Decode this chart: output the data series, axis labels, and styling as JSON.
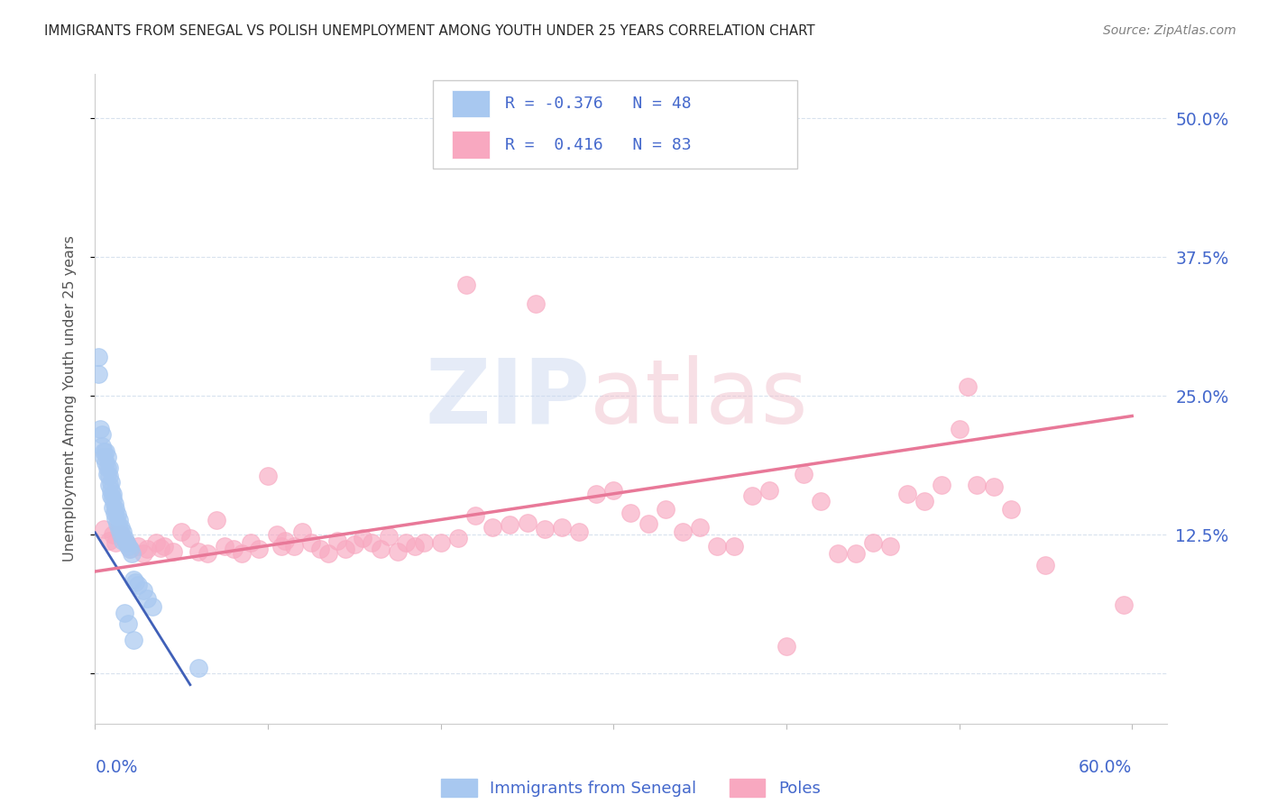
{
  "title": "IMMIGRANTS FROM SENEGAL VS POLISH UNEMPLOYMENT AMONG YOUTH UNDER 25 YEARS CORRELATION CHART",
  "source": "Source: ZipAtlas.com",
  "ylabel": "Unemployment Among Youth under 25 years",
  "background_color": "#ffffff",
  "blue_scatter_x": [
    0.002,
    0.002,
    0.003,
    0.004,
    0.004,
    0.005,
    0.005,
    0.006,
    0.006,
    0.007,
    0.007,
    0.007,
    0.008,
    0.008,
    0.008,
    0.009,
    0.009,
    0.009,
    0.01,
    0.01,
    0.01,
    0.011,
    0.011,
    0.012,
    0.012,
    0.013,
    0.013,
    0.014,
    0.014,
    0.015,
    0.015,
    0.016,
    0.016,
    0.017,
    0.018,
    0.019,
    0.02,
    0.021,
    0.022,
    0.023,
    0.025,
    0.028,
    0.03,
    0.033,
    0.017,
    0.019,
    0.022,
    0.06
  ],
  "blue_scatter_y": [
    0.285,
    0.27,
    0.22,
    0.215,
    0.205,
    0.2,
    0.195,
    0.2,
    0.19,
    0.195,
    0.185,
    0.18,
    0.185,
    0.178,
    0.17,
    0.172,
    0.165,
    0.16,
    0.162,
    0.158,
    0.15,
    0.153,
    0.145,
    0.148,
    0.14,
    0.143,
    0.135,
    0.138,
    0.13,
    0.132,
    0.125,
    0.128,
    0.12,
    0.122,
    0.118,
    0.115,
    0.112,
    0.108,
    0.085,
    0.082,
    0.08,
    0.075,
    0.068,
    0.06,
    0.055,
    0.045,
    0.03,
    0.005
  ],
  "pink_scatter_x": [
    0.005,
    0.008,
    0.01,
    0.012,
    0.015,
    0.018,
    0.02,
    0.025,
    0.028,
    0.03,
    0.035,
    0.038,
    0.04,
    0.045,
    0.05,
    0.055,
    0.06,
    0.065,
    0.07,
    0.075,
    0.08,
    0.085,
    0.09,
    0.095,
    0.1,
    0.105,
    0.108,
    0.11,
    0.115,
    0.12,
    0.125,
    0.13,
    0.135,
    0.14,
    0.145,
    0.15,
    0.155,
    0.16,
    0.165,
    0.17,
    0.175,
    0.18,
    0.185,
    0.19,
    0.2,
    0.21,
    0.215,
    0.22,
    0.23,
    0.24,
    0.25,
    0.255,
    0.26,
    0.27,
    0.28,
    0.29,
    0.3,
    0.31,
    0.32,
    0.33,
    0.34,
    0.35,
    0.36,
    0.37,
    0.38,
    0.39,
    0.4,
    0.41,
    0.42,
    0.43,
    0.44,
    0.45,
    0.46,
    0.47,
    0.48,
    0.49,
    0.5,
    0.505,
    0.51,
    0.52,
    0.53,
    0.55,
    0.595
  ],
  "pink_scatter_y": [
    0.13,
    0.12,
    0.125,
    0.118,
    0.125,
    0.118,
    0.112,
    0.115,
    0.108,
    0.112,
    0.118,
    0.113,
    0.115,
    0.11,
    0.128,
    0.122,
    0.11,
    0.108,
    0.138,
    0.115,
    0.112,
    0.108,
    0.118,
    0.112,
    0.178,
    0.125,
    0.115,
    0.12,
    0.115,
    0.128,
    0.118,
    0.112,
    0.108,
    0.12,
    0.112,
    0.116,
    0.122,
    0.118,
    0.112,
    0.124,
    0.11,
    0.118,
    0.115,
    0.118,
    0.118,
    0.122,
    0.35,
    0.142,
    0.132,
    0.134,
    0.136,
    0.333,
    0.13,
    0.132,
    0.128,
    0.162,
    0.165,
    0.145,
    0.135,
    0.148,
    0.128,
    0.132,
    0.115,
    0.115,
    0.16,
    0.165,
    0.025,
    0.18,
    0.155,
    0.108,
    0.108,
    0.118,
    0.115,
    0.162,
    0.155,
    0.17,
    0.22,
    0.258,
    0.17,
    0.168,
    0.148,
    0.098,
    0.062
  ],
  "blue_line_x": [
    0.0,
    0.055
  ],
  "blue_line_y": [
    0.127,
    -0.01
  ],
  "pink_line_x": [
    0.0,
    0.6
  ],
  "pink_line_y": [
    0.092,
    0.232
  ],
  "blue_color": "#a8c8f0",
  "pink_color": "#f8a8c0",
  "blue_line_color": "#4060b8",
  "pink_line_color": "#e87898",
  "grid_color": "#d8e2ee",
  "axis_color": "#4468cc",
  "title_color": "#282828",
  "ytick_vals": [
    0.0,
    0.125,
    0.25,
    0.375,
    0.5
  ],
  "ytick_labels": [
    "",
    "12.5%",
    "25.0%",
    "37.5%",
    "50.0%"
  ],
  "xtick_vals": [
    0.0,
    0.1,
    0.2,
    0.3,
    0.4,
    0.5,
    0.6
  ],
  "xlim": [
    0.0,
    0.62
  ],
  "ylim": [
    -0.045,
    0.54
  ],
  "legend_r1": "R = -0.376   N = 48",
  "legend_r2": "R =  0.416   N = 83"
}
